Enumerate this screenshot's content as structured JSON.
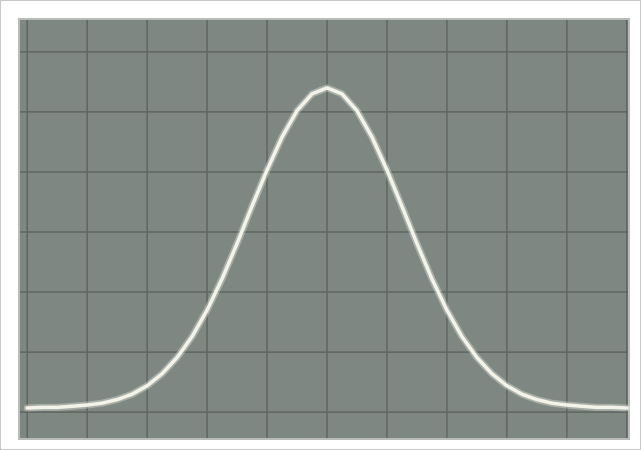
{
  "chart_data": {
    "type": "line",
    "x": [
      0,
      0.25,
      0.5,
      0.75,
      1,
      1.25,
      1.5,
      1.75,
      2,
      2.25,
      2.5,
      2.75,
      3,
      3.25,
      3.5,
      3.75,
      4,
      4.25,
      4.5,
      4.75,
      5,
      5.25,
      5.5,
      5.75,
      6,
      6.25,
      6.5,
      6.75,
      7,
      7.25,
      7.5,
      7.75,
      8,
      8.25,
      8.5,
      8.75,
      9,
      9.25,
      9.5,
      9.75,
      10
    ],
    "values": [
      0.07,
      0.08,
      0.08,
      0.1,
      0.12,
      0.15,
      0.21,
      0.3,
      0.44,
      0.64,
      0.91,
      1.26,
      1.7,
      2.22,
      2.81,
      3.43,
      4.03,
      4.58,
      5.02,
      5.3,
      5.4,
      5.3,
      5.02,
      4.58,
      4.03,
      3.43,
      2.81,
      2.22,
      1.7,
      1.26,
      0.91,
      0.64,
      0.44,
      0.3,
      0.21,
      0.15,
      0.12,
      0.1,
      0.08,
      0.08,
      0.07
    ],
    "color": "#f3f3ea",
    "xlim": [
      -0.12,
      10.02
    ],
    "ylim": [
      -0.43,
      6.53
    ],
    "xticks": [
      0,
      1,
      2,
      3,
      4,
      5,
      6,
      7,
      8,
      9,
      10
    ],
    "yticks": [
      0,
      1,
      2,
      3,
      4,
      5,
      6
    ],
    "grid": true
  }
}
